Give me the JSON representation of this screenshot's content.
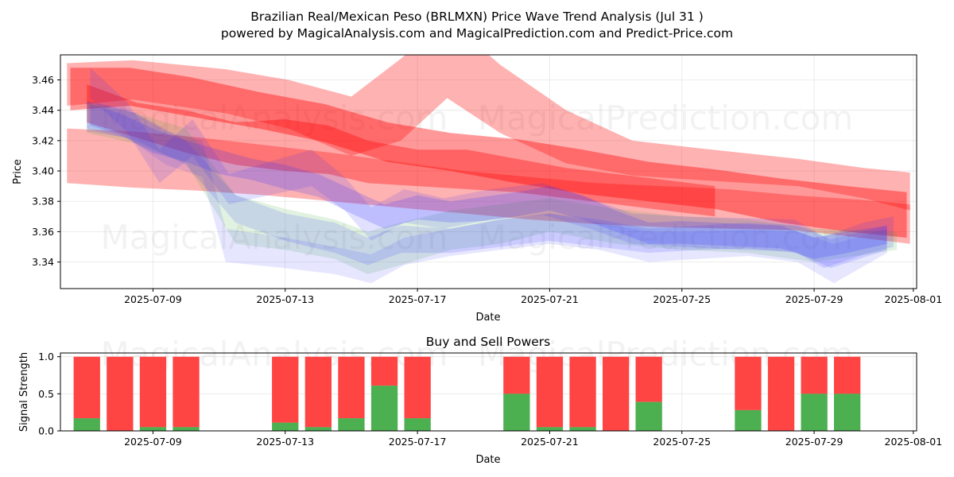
{
  "chart_data": [
    {
      "type": "area",
      "title": "Brazilian Real/Mexican Peso (BRLMXN) Price Wave Trend Analysis (Jul 31 )",
      "subtitle": "powered by MagicalAnalysis.com and MagicalPrediction.com and Predict-Price.com",
      "xlabel": "Date",
      "ylabel": "Price",
      "xlim": [
        -0.8,
        25.1
      ],
      "ylim": [
        3.3225,
        3.4765
      ],
      "x_ticks": [
        {
          "pos": 2,
          "label": "2025-07-09"
        },
        {
          "pos": 6,
          "label": "2025-07-13"
        },
        {
          "pos": 10,
          "label": "2025-07-17"
        },
        {
          "pos": 14,
          "label": "2025-07-21"
        },
        {
          "pos": 18,
          "label": "2025-07-25"
        },
        {
          "pos": 22,
          "label": "2025-07-29"
        },
        {
          "pos": 25,
          "label": "2025-08-01"
        }
      ],
      "y_ticks": [
        3.34,
        3.36,
        3.38,
        3.4,
        3.42,
        3.44,
        3.46
      ],
      "y_tick_labels": [
        "3.34",
        "3.36",
        "3.38",
        "3.40",
        "3.42",
        "3.44",
        "3.46"
      ],
      "grid": true,
      "watermarks": [
        "MagicalAnalysis.com",
        "MagicalPrediction.com",
        "MagicalAnalysis.com",
        "MagicalPrediction.com"
      ],
      "series": [
        {
          "name": "red-band-1",
          "color": "#ff0000",
          "opacity": 0.3,
          "x": [
            -0.6,
            1.4,
            4.2,
            6.1,
            8.0,
            9.5,
            10.9,
            12.5,
            14.5,
            16.5,
            18.5,
            21.5,
            23.5,
            24.9
          ],
          "upper": [
            3.471,
            3.473,
            3.467,
            3.46,
            3.449,
            3.474,
            3.5,
            3.47,
            3.44,
            3.42,
            3.415,
            3.408,
            3.402,
            3.399
          ],
          "lower": [
            3.443,
            3.447,
            3.438,
            3.428,
            3.41,
            3.42,
            3.448,
            3.425,
            3.405,
            3.397,
            3.394,
            3.39,
            3.382,
            3.374
          ]
        },
        {
          "name": "red-band-2",
          "color": "#ff0000",
          "opacity": 0.4,
          "x": [
            -0.5,
            1.3,
            3.1,
            5.2,
            7.2,
            9.1,
            11.0,
            13.0,
            15.0,
            17.0,
            19.0,
            21.0,
            23.0,
            24.8
          ],
          "upper": [
            3.468,
            3.468,
            3.462,
            3.452,
            3.444,
            3.432,
            3.425,
            3.421,
            3.414,
            3.406,
            3.401,
            3.395,
            3.39,
            3.386
          ],
          "lower": [
            3.44,
            3.443,
            3.436,
            3.428,
            3.419,
            3.406,
            3.4,
            3.392,
            3.385,
            3.38,
            3.375,
            3.366,
            3.36,
            3.356
          ]
        },
        {
          "name": "red-band-3",
          "color": "#ff0000",
          "opacity": 0.3,
          "x": [
            -0.6,
            1.4,
            3.4,
            5.4,
            7.4,
            9.4,
            11.4,
            13.4,
            15.4,
            17.4,
            19.4,
            21.4,
            23.4,
            24.9
          ],
          "upper": [
            3.428,
            3.426,
            3.422,
            3.417,
            3.412,
            3.406,
            3.4,
            3.396,
            3.392,
            3.39,
            3.388,
            3.384,
            3.381,
            3.378
          ],
          "lower": [
            3.392,
            3.389,
            3.387,
            3.384,
            3.38,
            3.376,
            3.372,
            3.368,
            3.365,
            3.363,
            3.362,
            3.361,
            3.356,
            3.352
          ]
        },
        {
          "name": "red-band-4",
          "color": "#ff0000",
          "opacity": 0.35,
          "x": [
            0.0,
            1.5,
            3.0,
            4.5,
            6.0,
            7.3,
            8.5,
            10.0,
            11.5,
            13.0,
            14.5,
            16.0,
            17.5,
            19.0
          ],
          "upper": [
            3.457,
            3.445,
            3.44,
            3.432,
            3.434,
            3.43,
            3.42,
            3.414,
            3.414,
            3.408,
            3.402,
            3.398,
            3.394,
            3.39
          ],
          "lower": [
            3.432,
            3.422,
            3.412,
            3.404,
            3.4,
            3.398,
            3.392,
            3.39,
            3.388,
            3.386,
            3.382,
            3.378,
            3.374,
            3.37
          ]
        },
        {
          "name": "green-band",
          "color": "#33aa33",
          "opacity": 0.15,
          "x": [
            0.0,
            1.5,
            3.0,
            4.5,
            6.0,
            7.5,
            8.5,
            9.5,
            11.0,
            12.5,
            14.0,
            16.0,
            18.0,
            20.0,
            22.0,
            24.5
          ],
          "upper": [
            3.445,
            3.438,
            3.428,
            3.384,
            3.375,
            3.368,
            3.36,
            3.366,
            3.374,
            3.378,
            3.382,
            3.375,
            3.37,
            3.368,
            3.362,
            3.36
          ],
          "lower": [
            3.425,
            3.418,
            3.405,
            3.352,
            3.348,
            3.342,
            3.332,
            3.338,
            3.348,
            3.352,
            3.36,
            3.352,
            3.348,
            3.346,
            3.34,
            3.348
          ]
        },
        {
          "name": "blue-band-1",
          "color": "#3333ff",
          "opacity": 0.12,
          "x": [
            0.0,
            1.2,
            2.4,
            3.5,
            4.2,
            6.0,
            7.5,
            8.6,
            9.6,
            11.0,
            12.5,
            14.0,
            15.5,
            17.0,
            18.5,
            20.0,
            21.5,
            22.6,
            24.2
          ],
          "upper": [
            3.446,
            3.441,
            3.426,
            3.42,
            3.362,
            3.356,
            3.35,
            3.345,
            3.356,
            3.362,
            3.368,
            3.372,
            3.366,
            3.36,
            3.36,
            3.361,
            3.36,
            3.352,
            3.362
          ],
          "lower": [
            3.426,
            3.422,
            3.404,
            3.396,
            3.34,
            3.336,
            3.332,
            3.326,
            3.338,
            3.344,
            3.348,
            3.352,
            3.348,
            3.34,
            3.342,
            3.344,
            3.34,
            3.326,
            3.346
          ]
        },
        {
          "name": "blue-band-2",
          "color": "#3333ff",
          "opacity": 0.15,
          "x": [
            0.0,
            1.5,
            3.0,
            4.5,
            6.0,
            7.5,
            8.5,
            9.5,
            11.0,
            12.5,
            14.0,
            15.5,
            17.0,
            18.5,
            20.0,
            21.5,
            22.5,
            24.2
          ],
          "upper": [
            3.446,
            3.438,
            3.42,
            3.384,
            3.372,
            3.366,
            3.356,
            3.364,
            3.362,
            3.368,
            3.372,
            3.368,
            3.362,
            3.364,
            3.366,
            3.364,
            3.355,
            3.364
          ],
          "lower": [
            3.428,
            3.42,
            3.404,
            3.366,
            3.354,
            3.346,
            3.338,
            3.346,
            3.346,
            3.35,
            3.354,
            3.35,
            3.346,
            3.348,
            3.349,
            3.346,
            3.336,
            3.348
          ]
        },
        {
          "name": "blue-band-3",
          "color": "#3333ff",
          "opacity": 0.15,
          "x": [
            0.1,
            1.2,
            2.2,
            3.2,
            4.3,
            5.5,
            6.8,
            7.8,
            8.6,
            9.6,
            10.8,
            12.2,
            13.8,
            15.2,
            16.5,
            18.0,
            19.8,
            21.4,
            22.3,
            23.5,
            24.4
          ],
          "upper": [
            3.468,
            3.446,
            3.414,
            3.434,
            3.398,
            3.406,
            3.414,
            3.396,
            3.376,
            3.388,
            3.382,
            3.388,
            3.392,
            3.382,
            3.372,
            3.37,
            3.369,
            3.368,
            3.357,
            3.366,
            3.37
          ],
          "lower": [
            3.448,
            3.426,
            3.392,
            3.41,
            3.378,
            3.384,
            3.39,
            3.374,
            3.354,
            3.366,
            3.362,
            3.368,
            3.371,
            3.362,
            3.352,
            3.35,
            3.348,
            3.347,
            3.336,
            3.345,
            3.35
          ]
        },
        {
          "name": "blue-band-4",
          "color": "#3333ff",
          "opacity": 0.2,
          "x": [
            0.1,
            1.0,
            2.0,
            3.0,
            4.0,
            5.0,
            6.0,
            7.0,
            8.0,
            9.0,
            10.0,
            11.0,
            12.0,
            13.0,
            14.0,
            15.0,
            16.0,
            17.0,
            18.0,
            19.0,
            20.0,
            21.0,
            22.0,
            23.0,
            24.2
          ],
          "upper": [
            3.444,
            3.438,
            3.428,
            3.42,
            3.414,
            3.408,
            3.404,
            3.398,
            3.388,
            3.378,
            3.384,
            3.38,
            3.383,
            3.386,
            3.39,
            3.384,
            3.374,
            3.366,
            3.367,
            3.366,
            3.365,
            3.364,
            3.356,
            3.36,
            3.364
          ],
          "lower": [
            3.43,
            3.424,
            3.412,
            3.406,
            3.398,
            3.394,
            3.388,
            3.383,
            3.372,
            3.362,
            3.368,
            3.366,
            3.367,
            3.37,
            3.374,
            3.368,
            3.36,
            3.352,
            3.352,
            3.351,
            3.35,
            3.349,
            3.342,
            3.346,
            3.352
          ]
        }
      ]
    },
    {
      "type": "bar",
      "title": "Buy and Sell Powers",
      "xlabel": "Date",
      "ylabel": "Signal Strength",
      "xlim": [
        -0.8,
        25.1
      ],
      "ylim": [
        0,
        1.05
      ],
      "x_ticks": [
        {
          "pos": 2,
          "label": "2025-07-09"
        },
        {
          "pos": 6,
          "label": "2025-07-13"
        },
        {
          "pos": 10,
          "label": "2025-07-17"
        },
        {
          "pos": 14,
          "label": "2025-07-21"
        },
        {
          "pos": 18,
          "label": "2025-07-25"
        },
        {
          "pos": 22,
          "label": "2025-07-29"
        },
        {
          "pos": 25,
          "label": "2025-08-01"
        }
      ],
      "y_ticks": [
        0.0,
        0.5,
        1.0
      ],
      "y_tick_labels": [
        "0.0",
        "0.5",
        "1.0"
      ],
      "grid": true,
      "bar_width": 0.8,
      "watermarks": [
        "MagicalAnalysis.com",
        "MagicalPrediction.com"
      ],
      "series": [
        {
          "name": "Buy",
          "color": "#4caf50"
        },
        {
          "name": "Sell",
          "color": "#ff4444"
        }
      ],
      "bars": [
        {
          "x": 0,
          "buy": 0.17
        },
        {
          "x": 1,
          "buy": 0.0
        },
        {
          "x": 2,
          "buy": 0.05
        },
        {
          "x": 3,
          "buy": 0.05
        },
        {
          "x": 6,
          "buy": 0.11
        },
        {
          "x": 7,
          "buy": 0.05
        },
        {
          "x": 8,
          "buy": 0.17
        },
        {
          "x": 9,
          "buy": 0.61
        },
        {
          "x": 10,
          "buy": 0.17
        },
        {
          "x": 13,
          "buy": 0.5
        },
        {
          "x": 14,
          "buy": 0.05
        },
        {
          "x": 15,
          "buy": 0.05
        },
        {
          "x": 16,
          "buy": 0.0
        },
        {
          "x": 17,
          "buy": 0.39
        },
        {
          "x": 20,
          "buy": 0.28
        },
        {
          "x": 21,
          "buy": 0.0
        },
        {
          "x": 22,
          "buy": 0.5
        },
        {
          "x": 23,
          "buy": 0.5
        }
      ]
    }
  ]
}
